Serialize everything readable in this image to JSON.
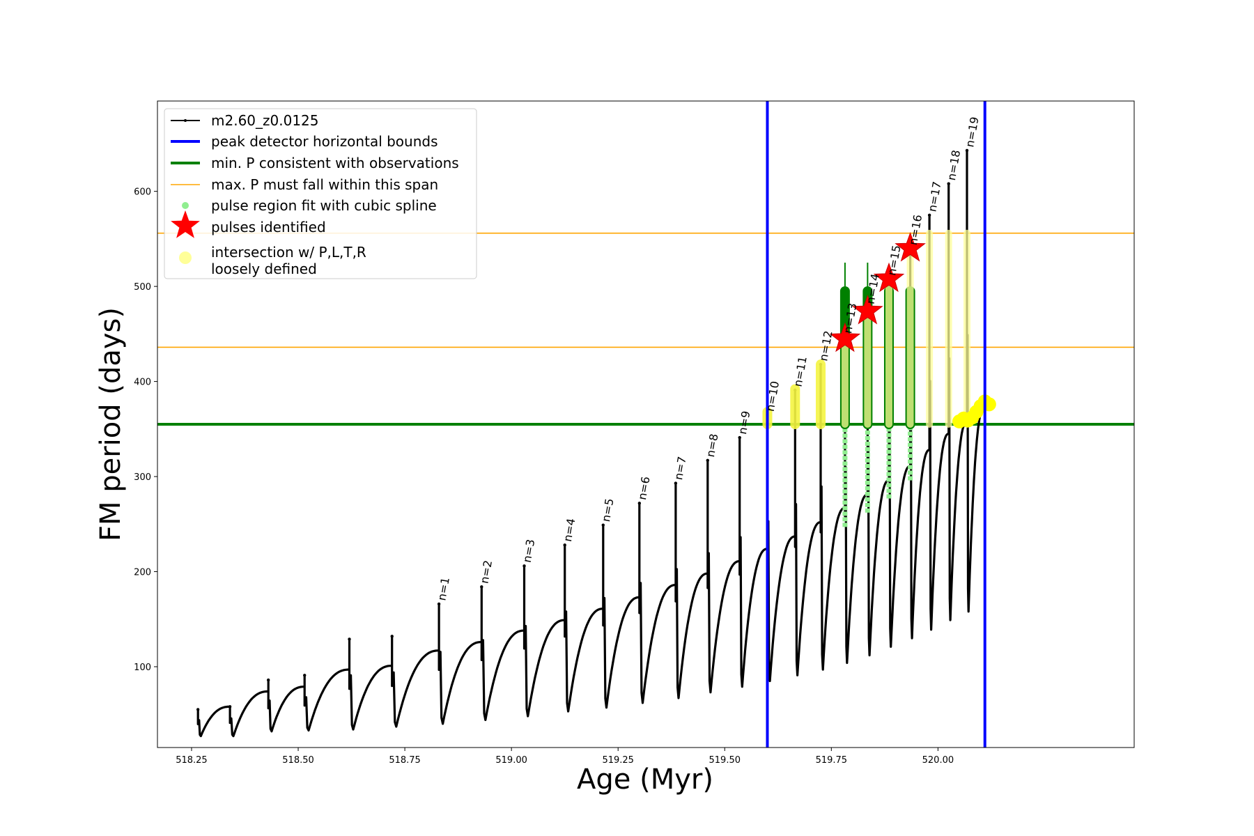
{
  "chart_data": {
    "type": "line",
    "title": "",
    "xlabel": "Age (Myr)",
    "ylabel": "FM period (days)",
    "xlim": [
      518.17,
      520.46
    ],
    "ylim": [
      15,
      695
    ],
    "x_ticks": [
      "518.25",
      "518.50",
      "518.75",
      "519.00",
      "519.25",
      "519.50",
      "519.75",
      "520.00"
    ],
    "x_tick_values": [
      518.25,
      518.5,
      518.75,
      519.0,
      519.25,
      519.5,
      519.75,
      520.0
    ],
    "y_ticks": [
      "100",
      "200",
      "300",
      "400",
      "500",
      "600"
    ],
    "y_tick_values": [
      100,
      200,
      300,
      400,
      500,
      600
    ],
    "legend": {
      "position": "upper-left",
      "entries": [
        {
          "label": "m2.60_z0.0125",
          "color": "#000000",
          "kind": "line-dot"
        },
        {
          "label": "peak detector horizontal bounds",
          "color": "#0000ff",
          "kind": "thick-line"
        },
        {
          "label": "min. P consistent with observations",
          "color": "#008000",
          "kind": "thick-line"
        },
        {
          "label": "max. P must fall within this span",
          "color": "#ffa500",
          "kind": "thin-line"
        },
        {
          "label": "pulse region fit with cubic spline",
          "color": "#90ee90",
          "kind": "dot"
        },
        {
          "label": "pulses identified",
          "color": "#ff0000",
          "kind": "star"
        },
        {
          "label": "intersection w/ P,L,T,R\nloosely defined",
          "color": "#ffff99",
          "kind": "big-dot"
        }
      ]
    },
    "vertical_lines": [
      {
        "x": 519.6,
        "color": "#0000ff",
        "role": "peak detector horizontal bounds"
      },
      {
        "x": 520.11,
        "color": "#0000ff",
        "role": "peak detector horizontal bounds"
      }
    ],
    "horizontal_lines": [
      {
        "y": 355,
        "color": "#008000",
        "role": "min. P consistent with observations"
      },
      {
        "y": 436,
        "color": "#ffa500",
        "role": "max. P span lower"
      },
      {
        "y": 556,
        "color": "#ffa500",
        "role": "max. P span upper"
      }
    ],
    "series": [
      {
        "name": "m2.60_z0.0125",
        "color": "#000000",
        "cycles": [
          {
            "x0": 518.265,
            "x1": 518.34,
            "spike": 55,
            "min": 27,
            "end": 58
          },
          {
            "x0": 518.34,
            "x1": 518.43,
            "spike": 58,
            "min": 27,
            "end": 74
          },
          {
            "x0": 518.43,
            "x1": 518.515,
            "spike": 86,
            "min": 32,
            "end": 79
          },
          {
            "x0": 518.515,
            "x1": 518.62,
            "spike": 91,
            "min": 33,
            "end": 97
          },
          {
            "x0": 518.62,
            "x1": 518.72,
            "spike": 129,
            "min": 34,
            "end": 101
          },
          {
            "x0": 518.72,
            "x1": 518.83,
            "spike": 132,
            "min": 37,
            "end": 117
          },
          {
            "x0": 518.83,
            "x1": 518.93,
            "spike": 166,
            "min": 40,
            "end": 126
          },
          {
            "x0": 518.93,
            "x1": 519.03,
            "spike": 184,
            "min": 44,
            "end": 138
          },
          {
            "x0": 519.03,
            "x1": 519.125,
            "spike": 206,
            "min": 48,
            "end": 149
          },
          {
            "x0": 519.125,
            "x1": 519.215,
            "spike": 228,
            "min": 53,
            "end": 161
          },
          {
            "x0": 519.215,
            "x1": 519.3,
            "spike": 249,
            "min": 57,
            "end": 173
          },
          {
            "x0": 519.3,
            "x1": 519.385,
            "spike": 272,
            "min": 62,
            "end": 186
          },
          {
            "x0": 519.385,
            "x1": 519.46,
            "spike": 293,
            "min": 67,
            "end": 198
          },
          {
            "x0": 519.46,
            "x1": 519.535,
            "spike": 317,
            "min": 73,
            "end": 211
          },
          {
            "x0": 519.535,
            "x1": 519.6,
            "spike": 341,
            "min": 79,
            "end": 224
          },
          {
            "x0": 519.6,
            "x1": 519.665,
            "spike": 365,
            "min": 85,
            "end": 237
          },
          {
            "x0": 519.665,
            "x1": 519.725,
            "spike": 391,
            "min": 91,
            "end": 252
          },
          {
            "x0": 519.725,
            "x1": 519.782,
            "spike": 418,
            "min": 97,
            "end": 267
          },
          {
            "x0": 519.782,
            "x1": 519.835,
            "spike": 447,
            "min": 104,
            "end": 281
          },
          {
            "x0": 519.835,
            "x1": 519.885,
            "spike": 478,
            "min": 112,
            "end": 296
          },
          {
            "x0": 519.885,
            "x1": 519.935,
            "spike": 508,
            "min": 121,
            "end": 311
          },
          {
            "x0": 519.935,
            "x1": 519.98,
            "spike": 540,
            "min": 130,
            "end": 328
          },
          {
            "x0": 519.98,
            "x1": 520.025,
            "spike": 575,
            "min": 139,
            "end": 345
          },
          {
            "x0": 520.025,
            "x1": 520.068,
            "spike": 608,
            "min": 149,
            "end": 358
          },
          {
            "x0": 520.068,
            "x1": 520.108,
            "spike": 643,
            "min": 158,
            "end": 372
          }
        ]
      }
    ],
    "pulse_labels": [
      {
        "label": "n=1",
        "x": 518.83,
        "y": 166
      },
      {
        "label": "n=2",
        "x": 518.93,
        "y": 184
      },
      {
        "label": "n=3",
        "x": 519.03,
        "y": 206
      },
      {
        "label": "n=4",
        "x": 519.125,
        "y": 228
      },
      {
        "label": "n=5",
        "x": 519.215,
        "y": 249
      },
      {
        "label": "n=6",
        "x": 519.3,
        "y": 272
      },
      {
        "label": "n=7",
        "x": 519.385,
        "y": 293
      },
      {
        "label": "n=8",
        "x": 519.46,
        "y": 317
      },
      {
        "label": "n=9",
        "x": 519.535,
        "y": 341
      },
      {
        "label": "n=10",
        "x": 519.6,
        "y": 365
      },
      {
        "label": "n=11",
        "x": 519.665,
        "y": 391
      },
      {
        "label": "n=12",
        "x": 519.725,
        "y": 418
      },
      {
        "label": "n=13",
        "x": 519.782,
        "y": 447
      },
      {
        "label": "n=14",
        "x": 519.835,
        "y": 478
      },
      {
        "label": "n=15",
        "x": 519.885,
        "y": 508
      },
      {
        "label": "n=16",
        "x": 519.935,
        "y": 540
      },
      {
        "label": "n=17",
        "x": 519.98,
        "y": 575
      },
      {
        "label": "n=18",
        "x": 520.025,
        "y": 608
      },
      {
        "label": "n=19",
        "x": 520.068,
        "y": 643
      }
    ],
    "spline_regions": [
      {
        "x": 519.782,
        "ymin": 247,
        "ymax": 495,
        "dense_from": 355
      },
      {
        "x": 519.835,
        "ymin": 262,
        "ymax": 495,
        "dense_from": 355
      },
      {
        "x": 519.885,
        "ymin": 277,
        "ymax": 495,
        "dense_from": 355
      },
      {
        "x": 519.935,
        "ymin": 296,
        "ymax": 495,
        "dense_from": 355
      }
    ],
    "spike_whiskers": [
      {
        "x": 519.782,
        "ymax": 525
      },
      {
        "x": 519.835,
        "ymax": 525
      }
    ],
    "pulses_identified": [
      {
        "x": 519.782,
        "y": 445
      },
      {
        "x": 519.835,
        "y": 474
      },
      {
        "x": 519.885,
        "y": 508
      },
      {
        "x": 519.935,
        "y": 540
      }
    ],
    "intersections": [
      {
        "x": 519.6,
        "ymin": 355,
        "ymax": 368
      },
      {
        "x": 519.665,
        "ymin": 355,
        "ymax": 392
      },
      {
        "x": 519.725,
        "ymin": 355,
        "ymax": 418
      },
      {
        "x": 519.782,
        "ymin": 355,
        "ymax": 447
      },
      {
        "x": 519.835,
        "ymin": 355,
        "ymax": 478
      },
      {
        "x": 519.885,
        "ymin": 355,
        "ymax": 508
      },
      {
        "x": 519.935,
        "ymin": 355,
        "ymax": 540
      },
      {
        "x": 519.98,
        "ymin": 355,
        "ymax": 556
      },
      {
        "x": 520.025,
        "ymin": 355,
        "ymax": 556
      },
      {
        "x": 520.068,
        "ymin": 355,
        "ymax": 556
      }
    ],
    "intersection_cluster": [
      {
        "x": 520.05,
        "y": 358
      },
      {
        "x": 520.06,
        "y": 361
      },
      {
        "x": 520.07,
        "y": 359
      },
      {
        "x": 520.08,
        "y": 362
      },
      {
        "x": 520.09,
        "y": 368
      },
      {
        "x": 520.1,
        "y": 374
      },
      {
        "x": 520.11,
        "y": 379
      },
      {
        "x": 520.12,
        "y": 376
      }
    ]
  }
}
